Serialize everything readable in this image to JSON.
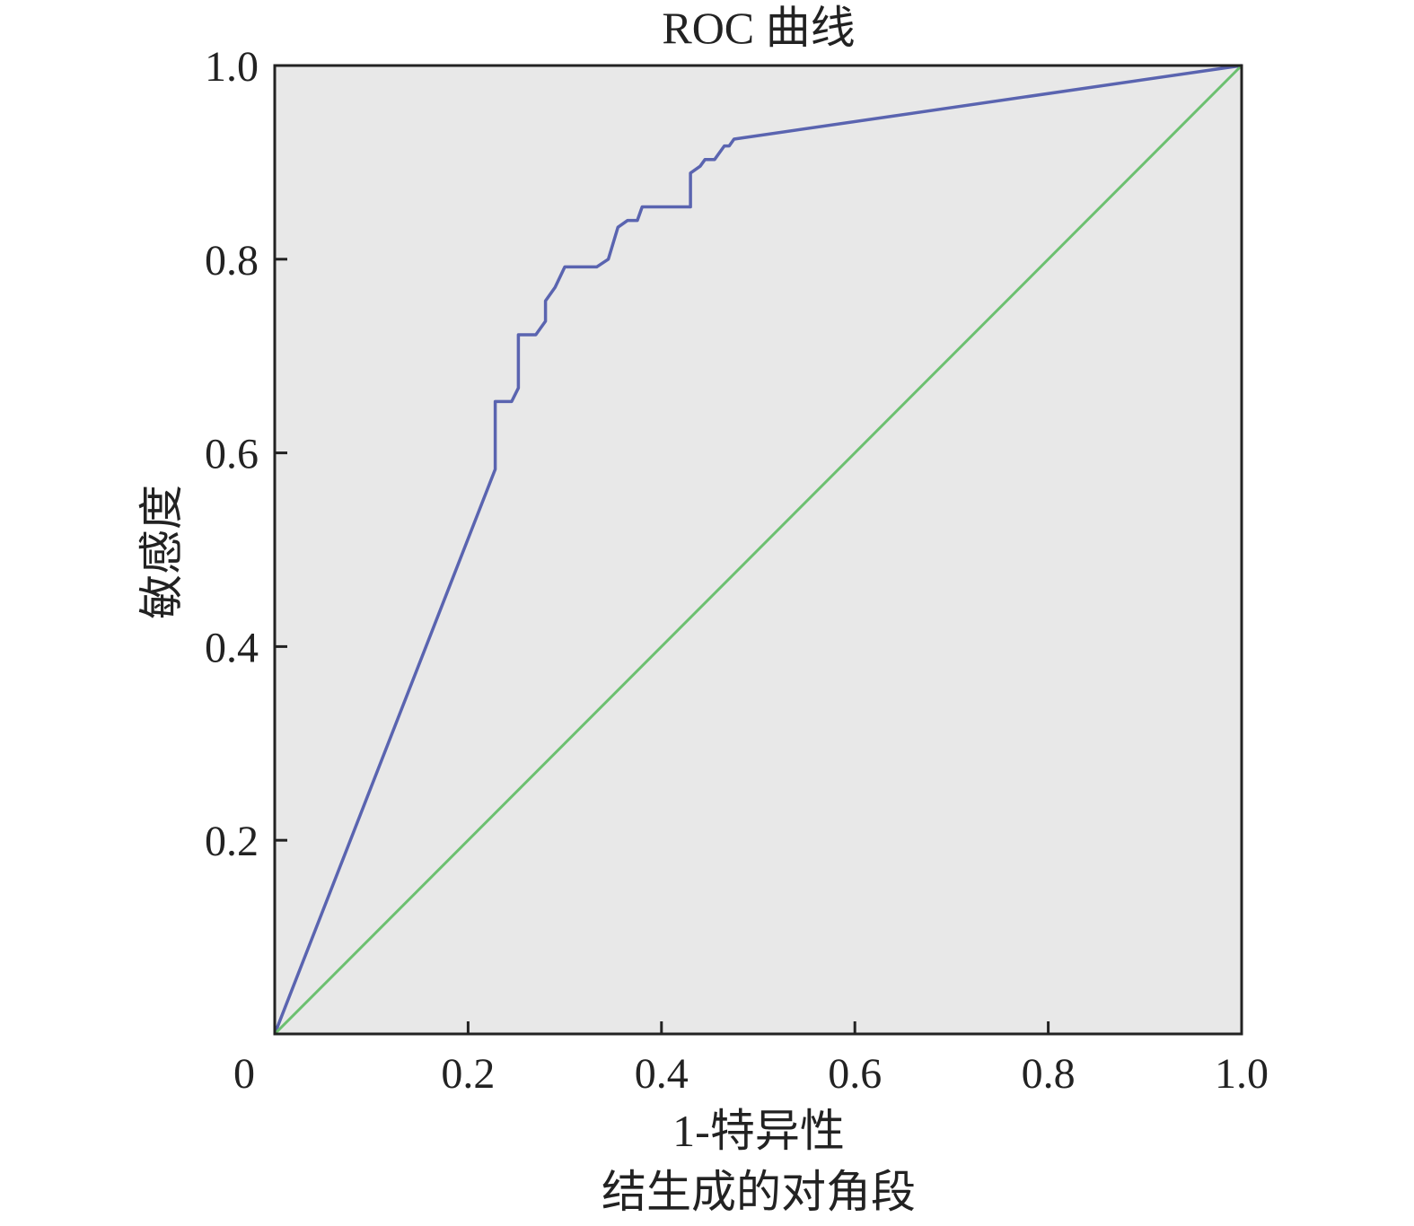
{
  "chart_data": {
    "type": "line",
    "title": "ROC 曲线",
    "xlabel": "1-特异性",
    "ylabel": "敏感度",
    "footnote": "结生成的对角段",
    "xlim": [
      0,
      1.0
    ],
    "ylim": [
      0,
      1.0
    ],
    "grid": false,
    "x_ticks": [
      0.2,
      0.4,
      0.6,
      0.8,
      1.0
    ],
    "x_tick_labels": [
      "0.2",
      "0.4",
      "0.6",
      "0.8",
      "1.0"
    ],
    "y_ticks": [
      0.2,
      0.4,
      0.6,
      0.8,
      1.0
    ],
    "y_tick_labels": [
      "0.2",
      "0.4",
      "0.6",
      "0.8",
      "1.0"
    ],
    "origin_label": "0",
    "plot_background": "#e8e8e8",
    "series": [
      {
        "color": "#5a64b0",
        "x": [
          0,
          0.228,
          0.228,
          0.245,
          0.252,
          0.252,
          0.27,
          0.28,
          0.28,
          0.29,
          0.3,
          0.333,
          0.345,
          0.355,
          0.365,
          0.375,
          0.38,
          0.43,
          0.43,
          0.44,
          0.445,
          0.455,
          0.46,
          0.465,
          0.47,
          0.475,
          1.0
        ],
        "y": [
          0,
          0.583,
          0.653,
          0.653,
          0.667,
          0.722,
          0.722,
          0.736,
          0.757,
          0.771,
          0.792,
          0.792,
          0.8,
          0.833,
          0.84,
          0.84,
          0.854,
          0.854,
          0.889,
          0.896,
          0.903,
          0.903,
          0.91,
          0.917,
          0.917,
          0.924,
          1.0
        ]
      },
      {
        "color": "#6cc070",
        "x": [
          0,
          1.0
        ],
        "y": [
          0,
          1.0
        ]
      }
    ]
  }
}
